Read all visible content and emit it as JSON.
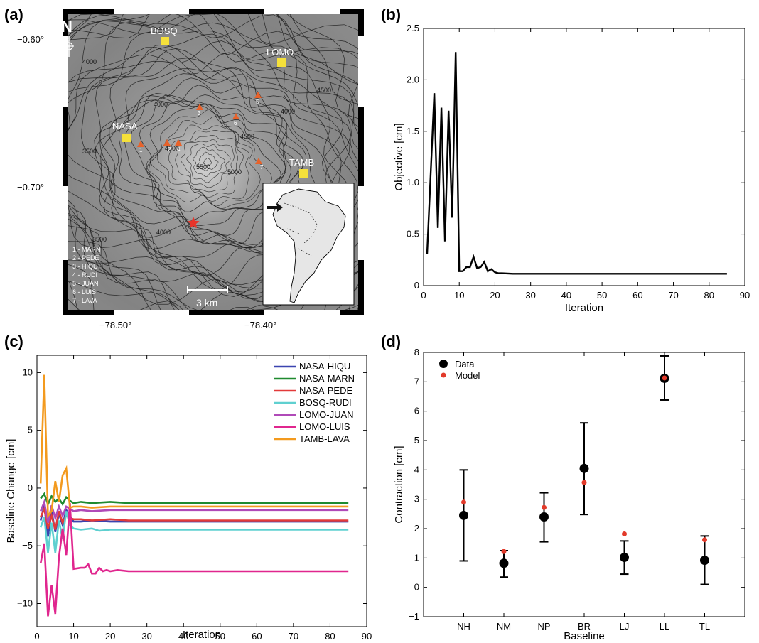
{
  "panels": {
    "a": "(a)",
    "b": "(b)",
    "c": "(c)",
    "d": "(d)"
  },
  "map": {
    "lat_labels": [
      "−0.60°",
      "−0.70°"
    ],
    "lon_labels": [
      "−78.50°",
      "−78.40°"
    ],
    "north": "N",
    "scale": "3 km",
    "stations_gps": [
      "BOSQ",
      "LOMO",
      "NASA",
      "TAMB"
    ],
    "station_list": [
      "1 - MARN",
      "2 - PEDE",
      "3 - HIQU",
      "4 - RUDI",
      "5 - JUAN",
      "6 - LUIS",
      "7 - LAVA"
    ],
    "contour_labels": [
      "4000",
      "3500",
      "4000",
      "4000",
      "4500",
      "4500",
      "5000",
      "5500",
      "4500",
      "3500",
      "4000"
    ],
    "reflector_numbers": [
      "1",
      "2",
      "3",
      "4",
      "5",
      "6",
      "7"
    ],
    "colors": {
      "station": "#f5e03a",
      "reflector": "#e8622a",
      "star": "#e8342a"
    }
  },
  "chart_data": [
    {
      "panel": "b",
      "type": "line",
      "x": [
        1,
        3,
        4,
        5,
        6,
        7,
        8,
        9,
        10,
        11,
        12,
        13,
        14,
        15,
        16,
        17,
        18,
        19,
        20,
        21,
        22,
        25,
        30,
        35,
        40,
        45,
        50,
        55,
        60,
        65,
        70,
        75,
        80,
        85
      ],
      "values": [
        0.31,
        1.87,
        0.56,
        1.73,
        0.43,
        1.7,
        0.66,
        2.27,
        0.14,
        0.14,
        0.18,
        0.18,
        0.28,
        0.17,
        0.18,
        0.23,
        0.14,
        0.16,
        0.13,
        0.12,
        0.12,
        0.115,
        0.115,
        0.115,
        0.115,
        0.115,
        0.115,
        0.115,
        0.115,
        0.115,
        0.115,
        0.115,
        0.115,
        0.115
      ],
      "xlabel": "Iteration",
      "ylabel": "Objective [cm]",
      "xlim": [
        0,
        90
      ],
      "ylim": [
        0,
        2.5
      ],
      "xticks": [
        "0",
        "10",
        "20",
        "30",
        "40",
        "50",
        "60",
        "70",
        "80",
        "90"
      ],
      "yticks": [
        "0",
        "0.5",
        "1.0",
        "1.5",
        "2.0",
        "2.5"
      ]
    },
    {
      "panel": "c",
      "type": "line",
      "xlabel": "Iteration",
      "ylabel": "Baseline Change [cm]",
      "xlim": [
        0,
        90
      ],
      "ylim": [
        -12,
        11.5
      ],
      "xticks": [
        "0",
        "10",
        "20",
        "30",
        "40",
        "50",
        "60",
        "70",
        "80",
        "90"
      ],
      "yticks": [
        "−10",
        "−5",
        "0",
        "5",
        "10"
      ],
      "legend_position": "top-right",
      "series": [
        {
          "name": "NASA-HIQU",
          "color": "#3b44b0",
          "x": [
            1,
            2,
            3,
            4,
            5,
            6,
            7,
            8,
            9,
            10,
            12,
            15,
            20,
            25,
            30,
            40,
            50,
            60,
            70,
            80,
            85
          ],
          "values": [
            -2.8,
            -1.5,
            -4.2,
            -2.0,
            -3.8,
            -2.2,
            -3.2,
            -1.9,
            -2.4,
            -2.9,
            -2.9,
            -2.8,
            -2.9,
            -2.9,
            -2.9,
            -2.9,
            -2.9,
            -2.9,
            -2.9,
            -2.9,
            -2.9
          ]
        },
        {
          "name": "NASA-MARN",
          "color": "#1f8a2f",
          "x": [
            1,
            2,
            3,
            4,
            5,
            6,
            7,
            8,
            9,
            10,
            12,
            15,
            20,
            25,
            30,
            40,
            50,
            60,
            70,
            80,
            85
          ],
          "values": [
            -0.9,
            -0.5,
            -1.4,
            -0.7,
            -1.2,
            -0.9,
            -1.4,
            -0.8,
            -1.1,
            -1.3,
            -1.2,
            -1.3,
            -1.2,
            -1.3,
            -1.3,
            -1.3,
            -1.3,
            -1.3,
            -1.3,
            -1.3,
            -1.3
          ]
        },
        {
          "name": "NASA-PEDE",
          "color": "#e23a3a",
          "x": [
            1,
            2,
            3,
            4,
            5,
            6,
            7,
            8,
            9,
            10,
            12,
            15,
            20,
            25,
            30,
            40,
            50,
            60,
            70,
            80,
            85
          ],
          "values": [
            -2.5,
            -1.8,
            -3.5,
            -2.4,
            -3.6,
            -2.0,
            -3.0,
            -2.4,
            -2.6,
            -2.7,
            -2.7,
            -2.8,
            -2.7,
            -2.8,
            -2.8,
            -2.8,
            -2.8,
            -2.8,
            -2.8,
            -2.8,
            -2.8
          ]
        },
        {
          "name": "BOSQ-RUDI",
          "color": "#5fd0d0",
          "x": [
            1,
            2,
            3,
            4,
            5,
            6,
            7,
            8,
            9,
            10,
            12,
            15,
            17,
            20,
            25,
            30,
            40,
            50,
            60,
            70,
            80,
            85
          ],
          "values": [
            -3.4,
            -2.5,
            -5.6,
            -3.0,
            -5.6,
            -2.8,
            -4.4,
            -2.0,
            -3.2,
            -3.5,
            -3.6,
            -3.5,
            -3.7,
            -3.6,
            -3.6,
            -3.6,
            -3.6,
            -3.6,
            -3.6,
            -3.6,
            -3.6,
            -3.6
          ]
        },
        {
          "name": "LOMO-JUAN",
          "color": "#b04ab8",
          "x": [
            1,
            2,
            3,
            4,
            5,
            6,
            7,
            8,
            9,
            10,
            12,
            15,
            20,
            25,
            30,
            40,
            50,
            60,
            70,
            80,
            85
          ],
          "values": [
            -2.0,
            -1.2,
            -3.0,
            -1.5,
            -2.6,
            -1.6,
            -2.4,
            -1.6,
            -1.8,
            -2.0,
            -1.9,
            -2.0,
            -1.9,
            -1.9,
            -1.9,
            -1.9,
            -1.9,
            -1.9,
            -1.9,
            -1.9,
            -1.9
          ]
        },
        {
          "name": "LOMO-LUIS",
          "color": "#e0268e",
          "x": [
            1,
            2,
            3,
            4,
            5,
            6,
            7,
            8,
            9,
            10,
            12,
            13,
            14,
            15,
            16,
            17,
            18,
            19,
            20,
            22,
            25,
            30,
            40,
            50,
            60,
            70,
            80,
            85
          ],
          "values": [
            -6.5,
            -4.8,
            -11.1,
            -8.4,
            -10.9,
            -6.0,
            -3.5,
            -5.8,
            -1.3,
            -7.0,
            -6.9,
            -6.9,
            -6.6,
            -7.4,
            -7.4,
            -6.9,
            -7.2,
            -7.1,
            -7.2,
            -7.1,
            -7.2,
            -7.2,
            -7.2,
            -7.2,
            -7.2,
            -7.2,
            -7.2,
            -7.2
          ]
        },
        {
          "name": "TAMB-LAVA",
          "color": "#f39a1e",
          "x": [
            1,
            2,
            3,
            4,
            5,
            6,
            7,
            8,
            9,
            10,
            12,
            15,
            20,
            25,
            30,
            40,
            50,
            60,
            70,
            80,
            85
          ],
          "values": [
            0.4,
            9.8,
            -2.4,
            -2.0,
            0.6,
            -1.2,
            1.1,
            1.7,
            -1.7,
            -1.6,
            -1.6,
            -1.7,
            -1.6,
            -1.6,
            -1.6,
            -1.6,
            -1.6,
            -1.6,
            -1.6,
            -1.6,
            -1.6
          ]
        }
      ]
    },
    {
      "panel": "d",
      "type": "scatter",
      "categories": [
        "NH",
        "NM",
        "NP",
        "BR",
        "LJ",
        "LL",
        "TL"
      ],
      "xlabel": "Baseline",
      "ylabel": "Contraction [cm]",
      "ylim": [
        -1,
        8
      ],
      "yticks": [
        "−1",
        "0",
        "1",
        "2",
        "3",
        "4",
        "5",
        "6",
        "7",
        "8"
      ],
      "legend_position": "top-left",
      "series": [
        {
          "name": "Data",
          "color": "#000000",
          "values": [
            2.45,
            0.82,
            2.4,
            4.05,
            1.02,
            7.12,
            0.92
          ],
          "err_low": [
            0.9,
            0.35,
            1.55,
            2.48,
            0.45,
            6.38,
            0.1
          ],
          "err_high": [
            4.0,
            1.25,
            3.22,
            5.6,
            1.58,
            7.88,
            1.75
          ]
        },
        {
          "name": "Model",
          "color": "#e23a2a",
          "values": [
            2.9,
            1.22,
            2.72,
            3.57,
            1.82,
            7.13,
            1.62
          ]
        }
      ]
    }
  ]
}
